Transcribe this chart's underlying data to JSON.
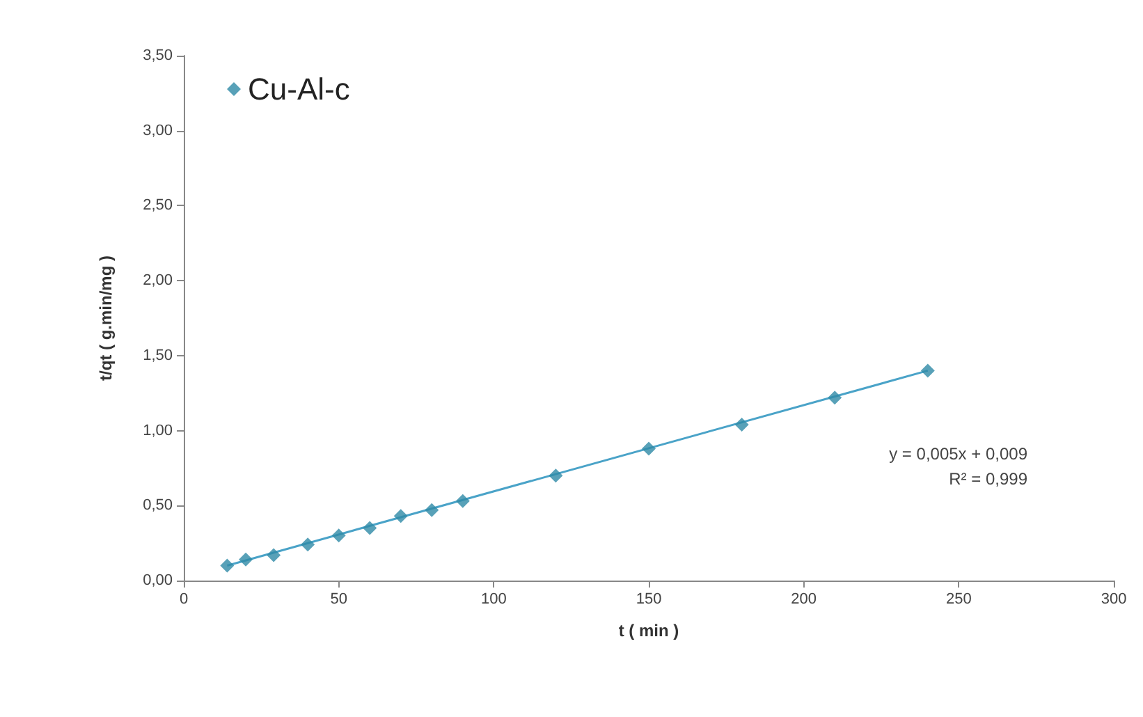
{
  "chart_data": {
    "type": "scatter",
    "xlabel": "t ( min )",
    "ylabel": "t/qt ( g.min/mg )",
    "series": [
      {
        "name": "Cu-Al-c",
        "color": "#2e8aa6",
        "x": [
          14,
          20,
          29,
          40,
          50,
          60,
          70,
          80,
          90,
          120,
          150,
          180,
          210,
          240
        ],
        "values": [
          0.1,
          0.14,
          0.17,
          0.24,
          0.3,
          0.35,
          0.43,
          0.47,
          0.53,
          0.7,
          0.88,
          1.04,
          1.22,
          1.4
        ]
      },
      {
        "type": "line",
        "marker": "none",
        "color": "#4aa3c8",
        "x": [
          14,
          240
        ],
        "values": [
          0.1,
          1.4
        ]
      }
    ],
    "xlim": [
      0,
      300
    ],
    "xticks": [
      0,
      50,
      100,
      150,
      200,
      250,
      300
    ],
    "ylim": [
      0,
      3.5
    ],
    "yticks": [
      {
        "value": 0,
        "label": "0,00"
      },
      {
        "value": 0.5,
        "label": "0,50"
      },
      {
        "value": 1,
        "label": "1,00"
      },
      {
        "value": 1.5,
        "label": "1,50"
      },
      {
        "value": 2,
        "label": "2,00"
      },
      {
        "value": 2.5,
        "label": "2,50"
      },
      {
        "value": 3,
        "label": "3,00"
      },
      {
        "value": 3.5,
        "label": "3,50"
      }
    ],
    "annotations": [
      "y = 0,005x + 0,009",
      "R² = 0,999"
    ],
    "grid": false,
    "legend": "top left",
    "marker": "diamond",
    "line_style": "solid"
  }
}
